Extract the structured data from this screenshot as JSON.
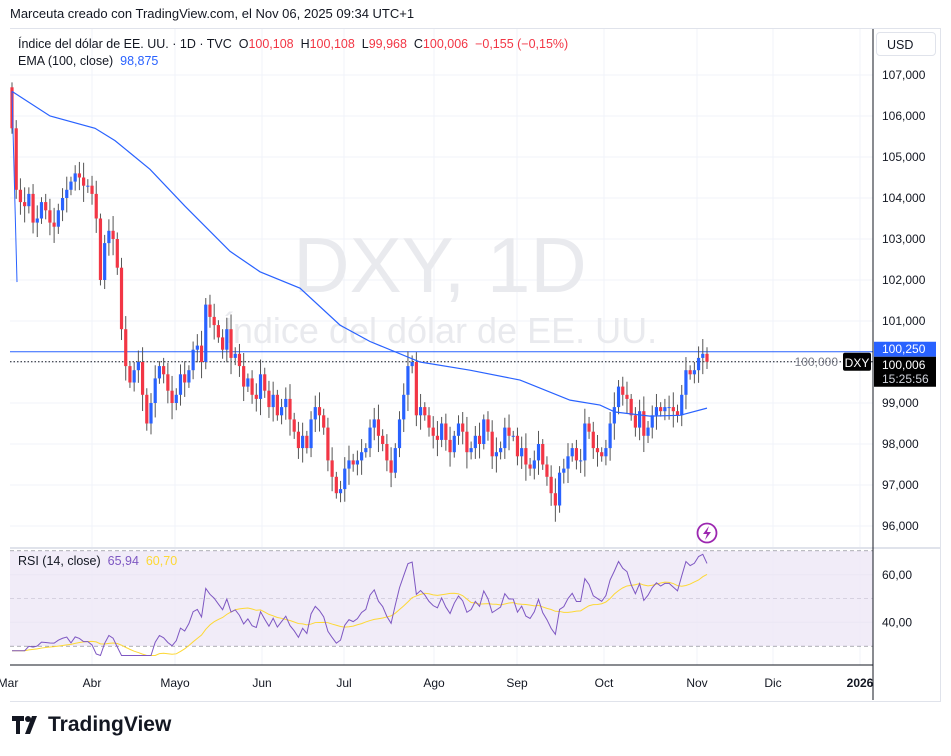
{
  "caption": "Marceuta creado con TradingView.com, el Nov 06, 2025 09:34 UTC+1",
  "legend": {
    "symbol": "Índice del dólar de EE. UU. · 1D · TVC",
    "o_label": "O",
    "open": "100,108",
    "h_label": "H",
    "high": "100,108",
    "l_label": "L",
    "low": "99,968",
    "c_label": "C",
    "close": "100,006",
    "change": "−0,155 (−0,15%)",
    "ema_label": "EMA (100, close)",
    "ema_value": "98,875"
  },
  "rsi_legend": {
    "label": "RSI (14, close)",
    "value": "65,94",
    "ma_value": "60,70"
  },
  "currency_button": "USD",
  "watermark": {
    "line1": "DXY, 1D",
    "line2": "Índice del dólar de EE. UU."
  },
  "price_labels": {
    "symbol": "DXY",
    "last": "100,006",
    "countdown": "15:25:56",
    "high_line": "100,250"
  },
  "brand": "TradingView",
  "colors": {
    "up": "#2962ff",
    "down": "#f23645",
    "ema": "#2962ff",
    "rsi": "#7e57c2",
    "rsi_ma": "#fdd835",
    "rsi_band": "#ede7f6",
    "alert_icon": "#9c27b0"
  },
  "icons": {
    "alert": "lightning-icon",
    "logo": "tradingview-logo-icon"
  },
  "chart_data": {
    "type": "candlestick",
    "interval": "1D",
    "price_axis": {
      "min": 96,
      "max": 107,
      "ticks": [
        "107,000",
        "106,000",
        "105,000",
        "104,000",
        "103,000",
        "102,000",
        "101,000",
        "100,000",
        "99,000",
        "98,000",
        "97,000",
        "96,000"
      ]
    },
    "time_axis": {
      "ticks": [
        "Mar",
        "Abr",
        "Mayo",
        "Jun",
        "Jul",
        "Ago",
        "Sep",
        "Oct",
        "Nov",
        "Dic",
        "2026"
      ]
    },
    "first_open": 106.7,
    "closes": [
      105.7,
      104.2,
      103.9,
      103.8,
      104.1,
      103.4,
      103.5,
      103.9,
      103.7,
      103.4,
      103.3,
      103.7,
      104.0,
      104.2,
      104.4,
      104.6,
      104.5,
      104.3,
      104.3,
      104.1,
      103.5,
      102.0,
      102.9,
      103.2,
      103.0,
      102.3,
      100.8,
      99.9,
      99.5,
      99.8,
      100.0,
      99.2,
      98.5,
      99.0,
      99.6,
      99.9,
      99.7,
      99.3,
      99.0,
      99.2,
      99.7,
      99.5,
      99.8,
      100.3,
      100.4,
      100.0,
      101.4,
      101.1,
      100.9,
      100.6,
      100.3,
      100.8,
      100.1,
      100.2,
      99.9,
      99.4,
      99.6,
      99.2,
      99.1,
      99.7,
      99.3,
      98.9,
      99.2,
      98.7,
      98.9,
      99.1,
      98.6,
      98.3,
      97.9,
      98.2,
      97.9,
      98.6,
      98.9,
      98.7,
      98.4,
      97.6,
      97.2,
      96.8,
      96.9,
      97.4,
      97.6,
      97.5,
      97.6,
      97.8,
      97.9,
      98.4,
      98.6,
      98.2,
      98.0,
      97.6,
      97.3,
      97.9,
      98.6,
      99.2,
      99.9,
      100.0,
      98.7,
      98.9,
      98.7,
      98.4,
      98.2,
      98.1,
      98.5,
      98.1,
      97.8,
      98.2,
      98.5,
      98.3,
      97.8,
      97.9,
      98.2,
      98.0,
      98.6,
      98.3,
      97.7,
      97.8,
      97.9,
      98.4,
      98.2,
      98.2,
      97.7,
      97.9,
      97.5,
      97.4,
      97.6,
      98.0,
      97.5,
      97.2,
      96.8,
      96.5,
      97.3,
      97.4,
      97.7,
      97.9,
      97.6,
      97.6,
      98.5,
      98.3,
      97.9,
      97.8,
      97.7,
      97.9,
      98.5,
      98.9,
      99.4,
      99.2,
      99.1,
      98.7,
      98.4,
      98.8,
      98.2,
      98.4,
      98.7,
      98.9,
      98.8,
      98.9,
      98.9,
      98.8,
      98.7,
      99.2,
      99.8,
      99.7,
      99.8,
      100.1,
      100.2,
      100.006
    ],
    "ema100": [
      106.6,
      106.0,
      105.7,
      105.4,
      104.7,
      103.8,
      102.7,
      102.2,
      101.8,
      100.9,
      100.5,
      100.0,
      99.8,
      99.56,
      99.07,
      98.95,
      98.78,
      98.68,
      98.7,
      98.875
    ],
    "rsi": {
      "period": 14,
      "ma_period": 14,
      "levels": [
        70,
        50,
        30
      ],
      "ticks": [
        "60,00",
        "40,00"
      ],
      "last": 65.94,
      "ma_last": 60.7
    }
  }
}
